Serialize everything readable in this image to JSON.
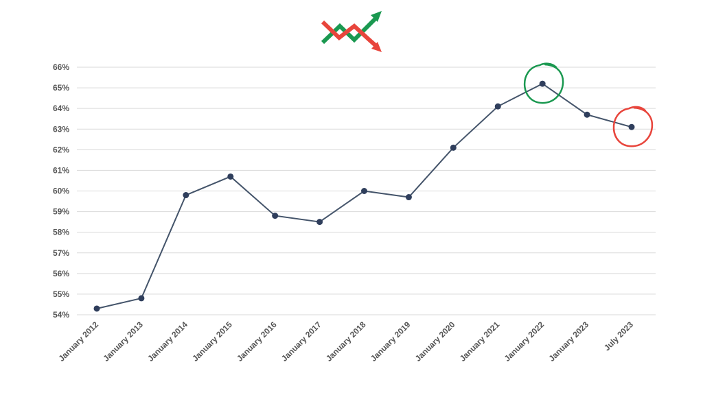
{
  "chart_data": {
    "type": "line",
    "title": "",
    "xlabel": "",
    "ylabel": "",
    "categories": [
      "January 2012",
      "January 2013",
      "January 2014",
      "January 2015",
      "January 2016",
      "January 2017",
      "January 2018",
      "January 2019",
      "January 2020",
      "January 2021",
      "January 2022",
      "January 2023",
      "July 2023"
    ],
    "series": [
      {
        "values": [
          54.3,
          54.8,
          59.8,
          60.7,
          58.8,
          58.5,
          60.0,
          59.7,
          62.1,
          64.1,
          65.2,
          63.7,
          63.1
        ]
      }
    ],
    "y_ticks": [
      "54%",
      "55%",
      "56%",
      "57%",
      "58%",
      "59%",
      "60%",
      "61%",
      "62%",
      "63%",
      "64%",
      "65%",
      "66%"
    ],
    "ylim": [
      54,
      66
    ],
    "grid": true,
    "legend": "none",
    "line_color": "#44546a",
    "point_color": "#2f3e5c",
    "annotations": [
      {
        "kind": "circle-highlight",
        "category": "January 2022",
        "color": "#1a9850"
      },
      {
        "kind": "circle-highlight",
        "category": "July 2023",
        "color": "#e8453c"
      }
    ],
    "logo": {
      "icon": "trend-arrows-icon",
      "up_color": "#1a9850",
      "down_color": "#e8453c"
    }
  }
}
